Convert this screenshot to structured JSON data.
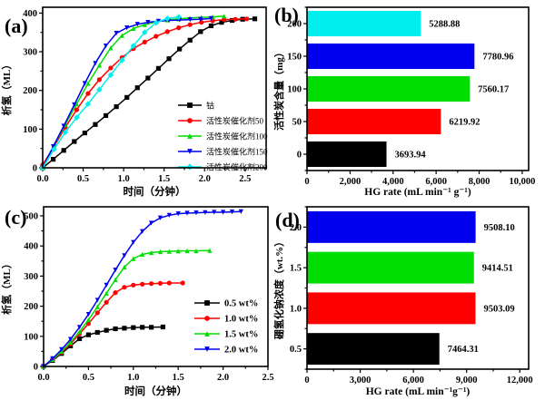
{
  "figure": {
    "background": "#ffffff"
  },
  "chart_data": [
    {
      "id": "a",
      "label": "(a)",
      "type": "line",
      "xlabel": "时间（分钟）",
      "ylabel": "析氢（ML）",
      "xlim": [
        0,
        2.76
      ],
      "ylim": [
        0,
        415
      ],
      "xticks": [
        0,
        0.5,
        1.0,
        1.5,
        2.0,
        2.5
      ],
      "xtick_labels": [
        "0.0",
        "0.5",
        "1.0",
        "1.5",
        "2.0",
        "2.5"
      ],
      "yticks": [
        0,
        100,
        200,
        300,
        400
      ],
      "ytick_labels": [
        "0",
        "100",
        "200",
        "300",
        "400"
      ],
      "legend_position": "right-middle",
      "series": [
        {
          "name": "钴",
          "color": "#000000",
          "marker": "square",
          "x": [
            0,
            0.13,
            0.26,
            0.39,
            0.52,
            0.65,
            0.78,
            0.91,
            1.04,
            1.17,
            1.3,
            1.43,
            1.56,
            1.69,
            1.82,
            1.95,
            2.08,
            2.21,
            2.34,
            2.47,
            2.62
          ],
          "y": [
            0,
            22,
            45,
            68,
            90,
            112,
            135,
            158,
            182,
            207,
            232,
            257,
            282,
            307,
            330,
            352,
            367,
            376,
            381,
            384,
            385
          ]
        },
        {
          "name": "活性炭催化剂50",
          "color": "#ff0000",
          "marker": "circle",
          "x": [
            0,
            0.14,
            0.28,
            0.42,
            0.56,
            0.7,
            0.84,
            0.98,
            1.12,
            1.26,
            1.4,
            1.54,
            1.68,
            1.82,
            1.96,
            2.1,
            2.24,
            2.38,
            2.52
          ],
          "y": [
            8,
            55,
            105,
            150,
            192,
            228,
            258,
            285,
            308,
            325,
            340,
            352,
            362,
            370,
            376,
            380,
            383,
            384,
            385
          ]
        },
        {
          "name": "活性炭催化剂100",
          "color": "#00dd00",
          "marker": "triangle-up",
          "x": [
            0,
            0.14,
            0.28,
            0.42,
            0.56,
            0.7,
            0.84,
            0.98,
            1.12,
            1.26,
            1.4,
            1.54,
            1.68,
            1.82,
            1.96,
            2.1,
            2.24
          ],
          "y": [
            0,
            58,
            112,
            165,
            218,
            265,
            310,
            342,
            360,
            370,
            377,
            382,
            385,
            387,
            389,
            390,
            392
          ]
        },
        {
          "name": "活性炭催化剂150",
          "color": "#0000ee",
          "marker": "triangle-down",
          "x": [
            0,
            0.13,
            0.26,
            0.39,
            0.52,
            0.65,
            0.78,
            0.91,
            1.04,
            1.17,
            1.3,
            1.43,
            1.56,
            1.69,
            1.82,
            1.95,
            2.08
          ],
          "y": [
            0,
            55,
            108,
            163,
            218,
            270,
            315,
            348,
            362,
            371,
            376,
            379,
            381,
            382,
            383,
            384,
            386
          ]
        },
        {
          "name": "活性炭催化剂200",
          "color": "#00eeee",
          "marker": "diamond",
          "x": [
            0,
            0.14,
            0.28,
            0.42,
            0.56,
            0.7,
            0.84,
            0.98,
            1.12,
            1.26,
            1.4,
            1.54,
            1.68
          ],
          "y": [
            0,
            48,
            92,
            130,
            165,
            202,
            240,
            278,
            315,
            350,
            375,
            386,
            390
          ]
        }
      ]
    },
    {
      "id": "b",
      "label": "(b)",
      "type": "barh",
      "xlabel": "HG rate (mL min⁻¹ g⁻¹)",
      "ylabel": "活性炭含量（mg）",
      "xlim": [
        0,
        10300
      ],
      "xticks": [
        0,
        2000,
        4000,
        6000,
        8000,
        10000
      ],
      "xtick_labels": [
        "0",
        "2,000",
        "4,000",
        "6,000",
        "8,000",
        "10,000"
      ],
      "categories": [
        "0",
        "50",
        "100",
        "150",
        "200"
      ],
      "values": [
        3693.94,
        6219.92,
        7560.17,
        7780.96,
        5288.88
      ],
      "value_labels": [
        "3693.94",
        "6219.92",
        "7560.17",
        "7780.96",
        "5288.88"
      ],
      "colors": [
        "#000000",
        "#ff0000",
        "#00dd00",
        "#0000ee",
        "#00eeee"
      ]
    },
    {
      "id": "c",
      "label": "(c)",
      "type": "line",
      "xlabel": "时间（分钟）",
      "ylabel": "析氢（ML）",
      "xlim": [
        0,
        2.5
      ],
      "ylim": [
        0,
        530
      ],
      "xticks": [
        0,
        0.5,
        1.0,
        1.5,
        2.0,
        2.5
      ],
      "xtick_labels": [
        "0.0",
        "0.5",
        "1.0",
        "1.5",
        "2.0",
        "2.5"
      ],
      "yticks": [
        0,
        100,
        200,
        300,
        400,
        500
      ],
      "ytick_labels": [
        "0",
        "100",
        "200",
        "300",
        "400",
        "500"
      ],
      "legend_position": "right-bottom",
      "series": [
        {
          "name": "0.5 wt%",
          "color": "#000000",
          "marker": "square",
          "x": [
            0,
            0.1,
            0.2,
            0.3,
            0.4,
            0.5,
            0.6,
            0.7,
            0.8,
            0.9,
            1.0,
            1.1,
            1.2,
            1.33
          ],
          "y": [
            0,
            20,
            43,
            68,
            92,
            105,
            113,
            120,
            125,
            127,
            129,
            130,
            130,
            131
          ]
        },
        {
          "name": "1.0 wt%",
          "color": "#ff0000",
          "marker": "circle",
          "x": [
            0,
            0.1,
            0.2,
            0.3,
            0.4,
            0.5,
            0.6,
            0.7,
            0.8,
            0.9,
            1.0,
            1.1,
            1.2,
            1.3,
            1.4,
            1.55
          ],
          "y": [
            0,
            22,
            47,
            75,
            108,
            142,
            178,
            213,
            245,
            263,
            270,
            273,
            275,
            276,
            277,
            277
          ]
        },
        {
          "name": "1.5 wt%",
          "color": "#00dd00",
          "marker": "triangle-up",
          "x": [
            0,
            0.1,
            0.2,
            0.3,
            0.4,
            0.5,
            0.6,
            0.7,
            0.8,
            0.9,
            1.0,
            1.1,
            1.2,
            1.3,
            1.4,
            1.5,
            1.6,
            1.7,
            1.85
          ],
          "y": [
            0,
            23,
            50,
            80,
            115,
            155,
            198,
            243,
            288,
            330,
            358,
            372,
            378,
            381,
            382,
            383,
            384,
            384,
            385
          ]
        },
        {
          "name": "2.0 wt%",
          "color": "#0000ee",
          "marker": "triangle-down",
          "x": [
            0,
            0.1,
            0.2,
            0.3,
            0.4,
            0.5,
            0.6,
            0.7,
            0.8,
            0.9,
            1.0,
            1.1,
            1.2,
            1.3,
            1.4,
            1.5,
            1.6,
            1.7,
            1.8,
            1.9,
            2.0,
            2.1,
            2.2
          ],
          "y": [
            0,
            26,
            56,
            90,
            130,
            173,
            220,
            270,
            320,
            368,
            412,
            448,
            476,
            493,
            502,
            507,
            509,
            510,
            511,
            512,
            512,
            513,
            514
          ]
        }
      ]
    },
    {
      "id": "d",
      "label": "(d)",
      "type": "barh",
      "xlabel": "HG rate (mL min⁻¹g⁻¹)",
      "ylabel": "硼氢化钠浓度（wt.%）",
      "xlim": [
        0,
        12500
      ],
      "xticks": [
        0,
        3000,
        6000,
        9000,
        12000
      ],
      "xtick_labels": [
        "0",
        "3,000",
        "6,000",
        "9,000",
        "12,000"
      ],
      "categories": [
        "0.5",
        "1.0",
        "1.5",
        "2.0"
      ],
      "values": [
        7464.31,
        9503.09,
        9414.51,
        9508.1
      ],
      "value_labels": [
        "7464.31",
        "9503.09",
        "9414.51",
        "9508.10"
      ],
      "colors": [
        "#000000",
        "#ff0000",
        "#00dd00",
        "#0000ee"
      ]
    }
  ]
}
